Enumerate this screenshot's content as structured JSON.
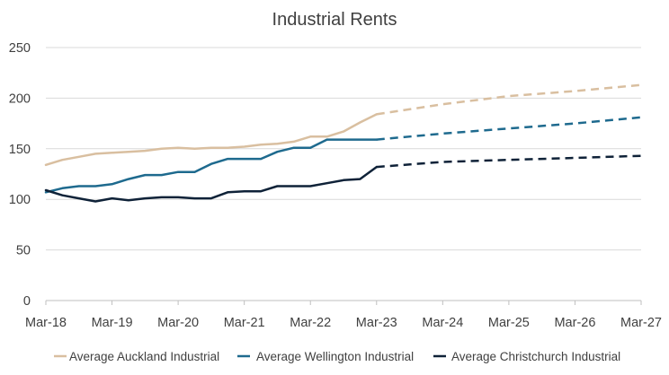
{
  "chart_data": {
    "type": "line",
    "title": "Industrial Rents",
    "xlabel": "",
    "ylabel": "",
    "x_ticks": [
      "Mar-18",
      "Mar-19",
      "Mar-20",
      "Mar-21",
      "Mar-22",
      "Mar-23",
      "Mar-24",
      "Mar-25",
      "Mar-26",
      "Mar-27"
    ],
    "y_ticks": [
      0,
      50,
      100,
      150,
      200,
      250
    ],
    "ylim": [
      0,
      250
    ],
    "xlim": [
      2018.17,
      2027.17
    ],
    "grid": "horizontal",
    "legend": "bottom",
    "series": [
      {
        "name": "Average Auckland Industrial",
        "color": "#D9BFA0",
        "x": [
          2018.17,
          2018.42,
          2018.67,
          2018.92,
          2019.17,
          2019.42,
          2019.67,
          2019.92,
          2020.17,
          2020.42,
          2020.67,
          2020.92,
          2021.17,
          2021.42,
          2021.67,
          2021.92,
          2022.17,
          2022.42,
          2022.67,
          2022.92,
          2023.17
        ],
        "y": [
          134,
          139,
          142,
          145,
          146,
          147,
          148,
          150,
          151,
          150,
          151,
          151,
          152,
          154,
          155,
          157,
          162,
          162,
          167,
          176,
          184
        ],
        "forecast_x": [
          2023.17,
          2024.17,
          2025.17,
          2026.17,
          2027.17
        ],
        "forecast_y": [
          184,
          194,
          202,
          207,
          213
        ]
      },
      {
        "name": "Average Wellington Industrial",
        "color": "#1E6A8E",
        "x": [
          2018.17,
          2018.42,
          2018.67,
          2018.92,
          2019.17,
          2019.42,
          2019.67,
          2019.92,
          2020.17,
          2020.42,
          2020.67,
          2020.92,
          2021.17,
          2021.42,
          2021.67,
          2021.92,
          2022.17,
          2022.42,
          2022.67,
          2022.92,
          2023.17
        ],
        "y": [
          107,
          111,
          113,
          113,
          115,
          120,
          124,
          124,
          127,
          127,
          135,
          140,
          140,
          140,
          147,
          151,
          151,
          159,
          159,
          159,
          159
        ],
        "forecast_x": [
          2023.17,
          2024.17,
          2025.17,
          2026.17,
          2027.17
        ],
        "forecast_y": [
          159,
          165,
          170,
          175,
          181
        ]
      },
      {
        "name": "Average Christchurch Industrial",
        "color": "#0F2238",
        "x": [
          2018.17,
          2018.42,
          2018.67,
          2018.92,
          2019.17,
          2019.42,
          2019.67,
          2019.92,
          2020.17,
          2020.42,
          2020.67,
          2020.92,
          2021.17,
          2021.42,
          2021.67,
          2021.92,
          2022.17,
          2022.42,
          2022.67,
          2022.92,
          2023.17
        ],
        "y": [
          109,
          104,
          101,
          98,
          101,
          99,
          101,
          102,
          102,
          101,
          101,
          107,
          108,
          108,
          113,
          113,
          113,
          116,
          119,
          120,
          132
        ],
        "forecast_x": [
          2023.17,
          2024.17,
          2025.17,
          2026.17,
          2027.17
        ],
        "forecast_y": [
          132,
          137,
          139,
          141,
          143
        ]
      }
    ]
  }
}
